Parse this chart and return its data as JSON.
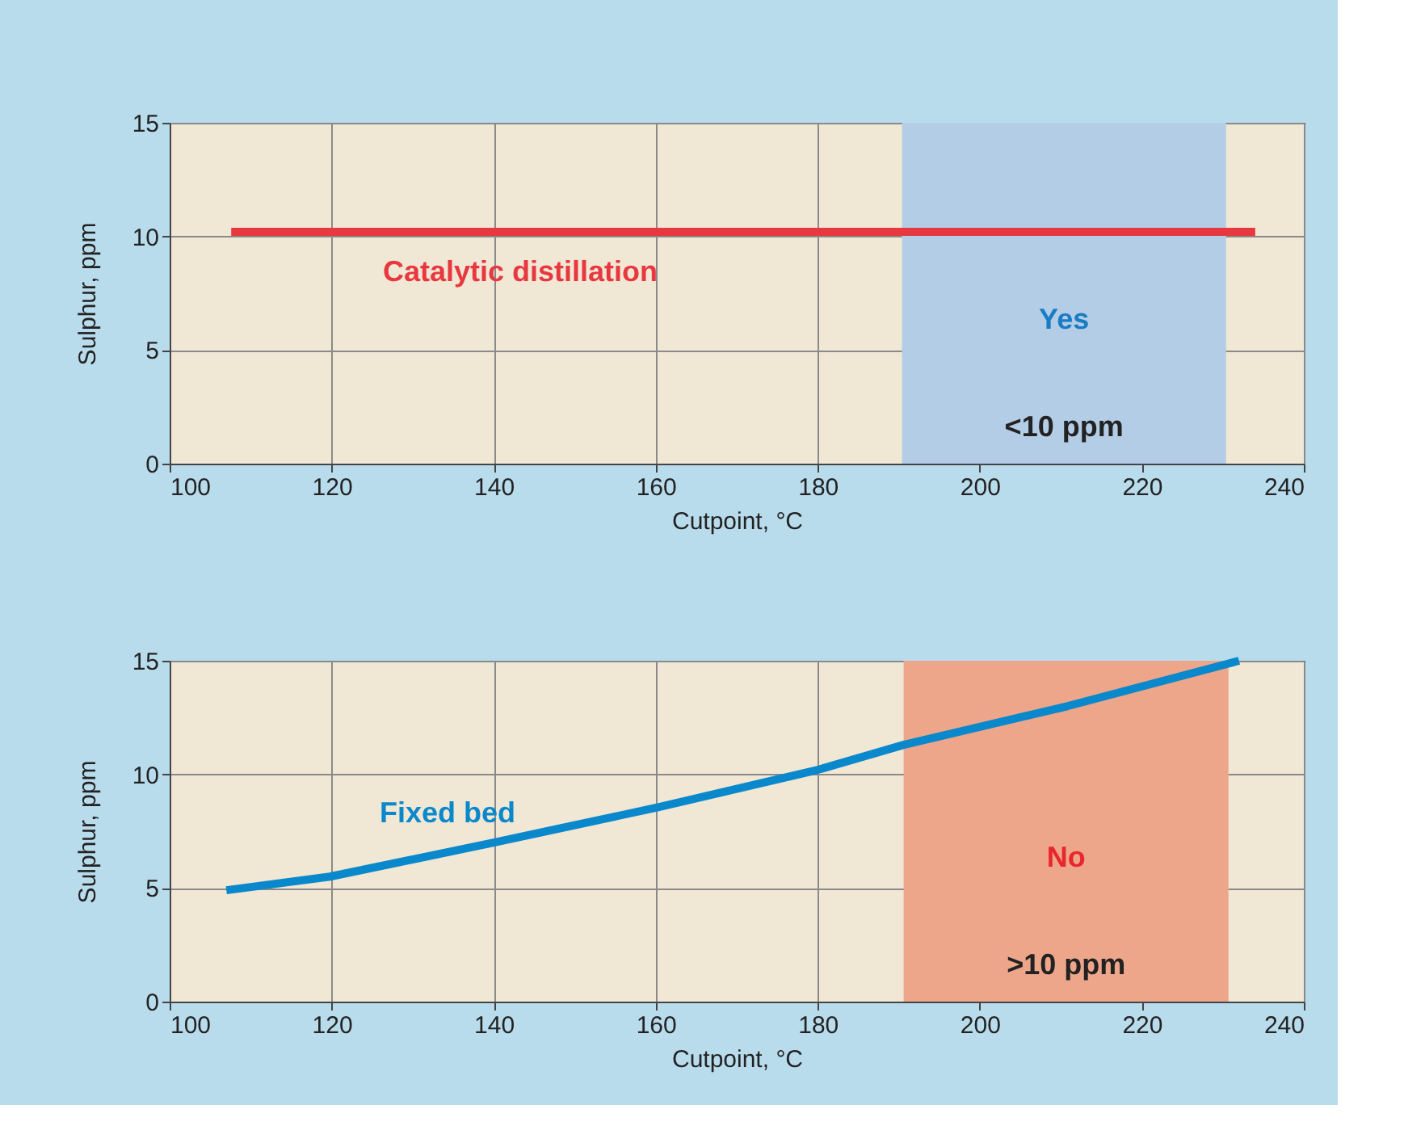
{
  "chart_data": [
    {
      "type": "line",
      "xlabel": "Cutpoint, °C",
      "ylabel": "Sulphur, ppm",
      "xlim": [
        100,
        240
      ],
      "xticks": [
        100,
        120,
        140,
        160,
        180,
        200,
        220,
        240
      ],
      "ylim": [
        0,
        15
      ],
      "yticks": [
        0,
        5,
        10,
        15
      ],
      "grid": true,
      "marker": "none",
      "line_style": "solid",
      "series": [
        {
          "name": "Catalytic distillation",
          "color": "#e8383f",
          "x": [
            107.6,
            234
          ],
          "values": [
            10.2,
            10.2
          ]
        }
      ],
      "bands": [
        {
          "axis": "x",
          "from": 190.4,
          "to": 230.4,
          "label": "Yes",
          "color": "#b3cde6"
        }
      ],
      "annotations": [
        "<10 ppm"
      ]
    },
    {
      "type": "line",
      "xlabel": "Cutpoint, °C",
      "ylabel": "Sulphur, ppm",
      "xlim": [
        100,
        240
      ],
      "xticks": [
        100,
        120,
        140,
        160,
        180,
        200,
        220,
        240
      ],
      "ylim": [
        0,
        15
      ],
      "yticks": [
        0,
        5,
        10,
        15
      ],
      "grid": true,
      "marker": "none",
      "line_style": "solid",
      "series": [
        {
          "name": "Fixed bed",
          "color": "#0a88cc",
          "x": [
            107,
            119.8,
            140,
            160.3,
            180,
            190.6,
            210.8,
            232
          ],
          "values": [
            4.9,
            5.5,
            7.0,
            8.55,
            10.2,
            11.3,
            13.0,
            15.0
          ]
        }
      ],
      "bands": [
        {
          "axis": "x",
          "from": 190.6,
          "to": 230.7,
          "label": "No",
          "color": "#eda68a"
        }
      ],
      "annotations": [
        ">10 ppm"
      ]
    }
  ]
}
